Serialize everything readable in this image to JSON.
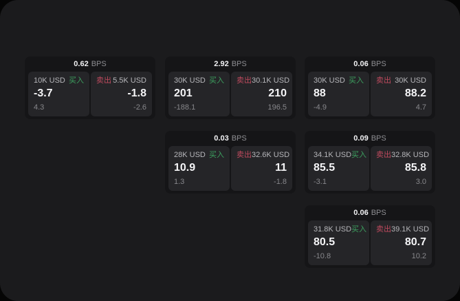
{
  "labels": {
    "bps_unit": "BPS",
    "buy": "买入",
    "sell": "卖出"
  },
  "colors": {
    "background": "#050505",
    "panel": "#1b1b1d",
    "card": "#151517",
    "subcard": "#252528",
    "buy_green": "#3da05f",
    "sell_red": "#bf4a5e",
    "value_white": "#f5f5f7",
    "muted_gray": "#87878b"
  },
  "cards": [
    {
      "bps": "0.62",
      "buy": {
        "amount": "10K USD",
        "price": "-3.7",
        "delta": "4.3"
      },
      "sell": {
        "amount": "5.5K USD",
        "price": "-1.8",
        "delta": "-2.6"
      }
    },
    {
      "bps": "2.92",
      "buy": {
        "amount": "30K USD",
        "price": "201",
        "delta": "-188.1"
      },
      "sell": {
        "amount": "30.1K USD",
        "price": "210",
        "delta": "196.5"
      }
    },
    {
      "bps": "0.06",
      "buy": {
        "amount": "30K USD",
        "price": "88",
        "delta": "-4.9"
      },
      "sell": {
        "amount": "30K USD",
        "price": "88.2",
        "delta": "4.7"
      }
    },
    {
      "bps": "0.03",
      "buy": {
        "amount": "28K USD",
        "price": "10.9",
        "delta": "1.3"
      },
      "sell": {
        "amount": "32.6K USD",
        "price": "11",
        "delta": "-1.8"
      }
    },
    {
      "bps": "0.09",
      "buy": {
        "amount": "34.1K USD",
        "price": "85.5",
        "delta": "-3.1"
      },
      "sell": {
        "amount": "32.8K USD",
        "price": "85.8",
        "delta": "3.0"
      }
    },
    {
      "bps": "0.06",
      "buy": {
        "amount": "31.8K USD",
        "price": "80.5",
        "delta": "-10.8"
      },
      "sell": {
        "amount": "39.1K USD",
        "price": "80.7",
        "delta": "10.2"
      }
    }
  ]
}
